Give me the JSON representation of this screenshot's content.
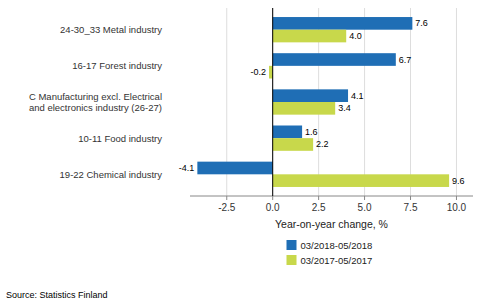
{
  "chart_data": {
    "type": "bar",
    "orientation": "horizontal",
    "categories": [
      "19-22 Chemical industry",
      "10-11 Food industry",
      "C Manufacturing excl. Electrical\nand electronics industry (26-27)",
      "16-17 Forest industry",
      "24-30_33 Metal industry"
    ],
    "series": [
      {
        "name": "03/2018-05/2018",
        "color": "#1F6EB5",
        "values": [
          -4.1,
          1.6,
          4.1,
          6.7,
          7.6
        ]
      },
      {
        "name": "03/2017-05/2017",
        "color": "#C8D84B",
        "values": [
          9.6,
          2.2,
          3.4,
          -0.2,
          4.0
        ],
        "value_labels": [
          "9.6",
          "2.2",
          "3.4",
          "-0.2",
          "4.0"
        ]
      }
    ],
    "xlabel": "Year-on-year change, %",
    "xlim": [
      -4.5,
      10.9
    ],
    "xticks": [
      -2.5,
      {
        "value": 0,
        "label": "0.0"
      },
      2.5,
      {
        "value": 5,
        "label": "5.0"
      },
      7.5,
      {
        "value": 10,
        "label": "10.0"
      }
    ],
    "grid": true,
    "legend": "bottom",
    "data_labels": true,
    "source": "Source: Statistics Finland"
  }
}
